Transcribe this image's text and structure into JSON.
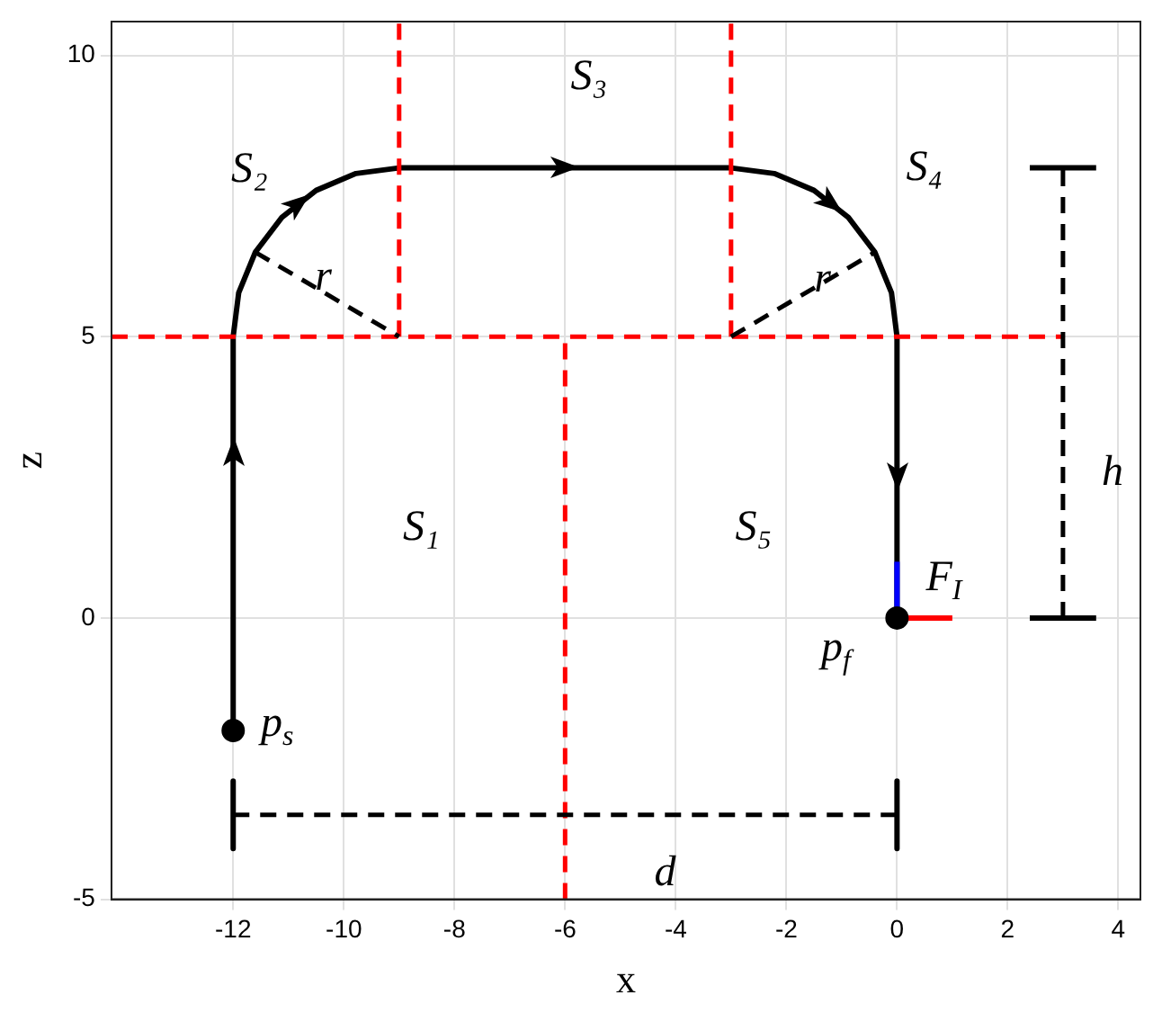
{
  "chart_data": {
    "type": "line",
    "xlabel": "x",
    "ylabel": "z",
    "xlim": [
      -14.2,
      4.4
    ],
    "ylim": [
      -5,
      10.6
    ],
    "xticks": [
      -12,
      -10,
      -8,
      -6,
      -4,
      -2,
      0,
      2,
      4
    ],
    "yticks": [
      -5,
      0,
      5,
      10
    ],
    "grid": true,
    "legend": false,
    "series": [
      {
        "color": "#000000",
        "line_style": "solid",
        "x": [
          -12,
          -12,
          -11.9,
          -11.6,
          -11.12,
          -10.5,
          -9.78,
          -9,
          -3,
          -2.22,
          -1.5,
          -0.88,
          -0.4,
          -0.1,
          0,
          0
        ],
        "values": [
          -2,
          5,
          5.78,
          6.5,
          7.12,
          7.6,
          7.9,
          8,
          8,
          7.9,
          7.6,
          7.12,
          6.5,
          5.78,
          5,
          0
        ]
      },
      {
        "color": "#ff0000",
        "line_style": "dashed",
        "x": [
          -14.2,
          3
        ],
        "values": [
          5,
          5
        ]
      },
      {
        "color": "#ff0000",
        "line_style": "dashed",
        "x": [
          -9,
          -9
        ],
        "values": [
          5,
          10.6
        ]
      },
      {
        "color": "#ff0000",
        "line_style": "dashed",
        "x": [
          -3,
          -3
        ],
        "values": [
          5,
          10.6
        ]
      },
      {
        "color": "#ff0000",
        "line_style": "dashed",
        "x": [
          -6,
          -6
        ],
        "values": [
          -5,
          5
        ]
      },
      {
        "color": "#000000",
        "line_style": "dashed",
        "x": [
          -11.6,
          -9
        ],
        "values": [
          6.5,
          5
        ]
      },
      {
        "color": "#000000",
        "line_style": "dashed",
        "x": [
          -3,
          -0.4
        ],
        "values": [
          5,
          6.5
        ]
      },
      {
        "color": "#000000",
        "line_style": "dashed",
        "x": [
          -12,
          0
        ],
        "values": [
          -3.5,
          -3.5
        ]
      },
      {
        "color": "#000000",
        "line_style": "solid",
        "x": [
          -12,
          -12
        ],
        "values": [
          -2.9,
          -4.1
        ]
      },
      {
        "color": "#000000",
        "line_style": "solid",
        "x": [
          0,
          0
        ],
        "values": [
          -2.9,
          -4.1
        ]
      },
      {
        "color": "#000000",
        "line_style": "dashed",
        "x": [
          3,
          3
        ],
        "values": [
          0,
          8
        ]
      },
      {
        "color": "#000000",
        "line_style": "solid",
        "x": [
          2.4,
          3.6
        ],
        "values": [
          0,
          0
        ]
      },
      {
        "color": "#000000",
        "line_style": "solid",
        "x": [
          2.4,
          3.6
        ],
        "values": [
          8,
          8
        ]
      },
      {
        "color": "#0000ff",
        "line_style": "solid",
        "x": [
          0,
          0
        ],
        "values": [
          0,
          1
        ]
      },
      {
        "color": "#ff0000",
        "line_style": "solid",
        "x": [
          0,
          1
        ],
        "values": [
          0,
          0
        ]
      },
      {
        "type": "scatter",
        "color": "#000000",
        "marker": "circle",
        "x": [
          -12,
          0
        ],
        "values": [
          -2,
          0
        ]
      }
    ],
    "annotations": [
      "S₁",
      "S₂",
      "S₃",
      "S₄",
      "S₅",
      "F$_{I}$",
      "p$_{s}$",
      "p$_{f}$",
      "r",
      "r",
      "h",
      "d"
    ]
  }
}
